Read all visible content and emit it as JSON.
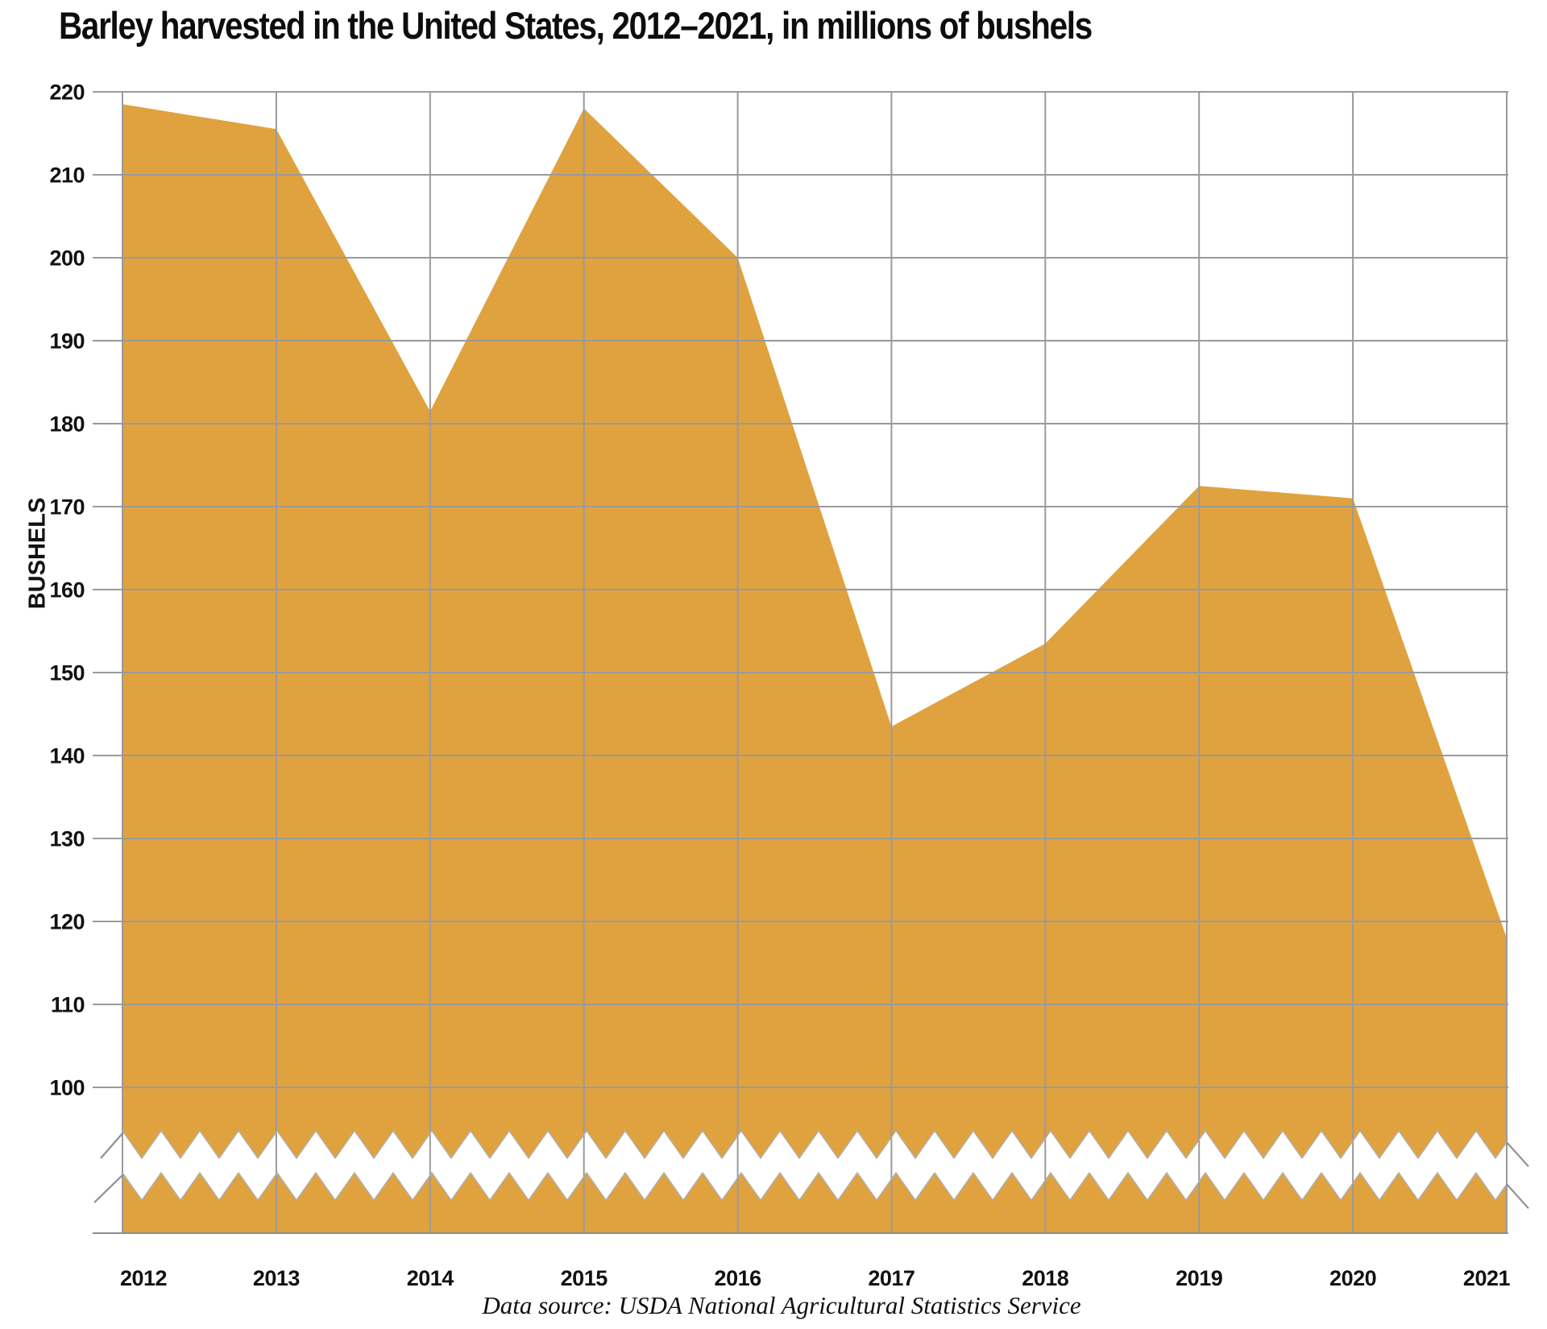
{
  "title": "Barley harvested in the United States, 2012–2021, in millions of bushels",
  "source_note": "Data source: USDA National Agricultural Statistics Service",
  "chart_data": {
    "type": "area",
    "title": "Barley harvested in the United States, 2012–2021, in millions of bushels",
    "x": [
      2012,
      2013,
      2014,
      2015,
      2016,
      2017,
      2018,
      2019,
      2020,
      2021
    ],
    "series": [
      {
        "name": "Barley harvested (millions of bushels)",
        "values": [
          218.5,
          215.5,
          181.5,
          218,
          200,
          143.5,
          153.5,
          172.5,
          171,
          118
        ]
      }
    ],
    "xlabel": "",
    "ylabel": "BUSHELS",
    "units": "millions of bushels",
    "y_ticks": [
      220,
      210,
      200,
      190,
      180,
      170,
      160,
      150,
      140,
      130,
      120,
      110,
      100
    ],
    "ylim": [
      100,
      220
    ],
    "y_axis_break": true,
    "grid": true,
    "legend_position": "none",
    "fill_color": "#E0A23E",
    "grid_color": "#9A9A9A",
    "axis_line_color": "#8C8C8C",
    "break_edge_color": "#AFAFAF",
    "text_color": "#111111"
  }
}
